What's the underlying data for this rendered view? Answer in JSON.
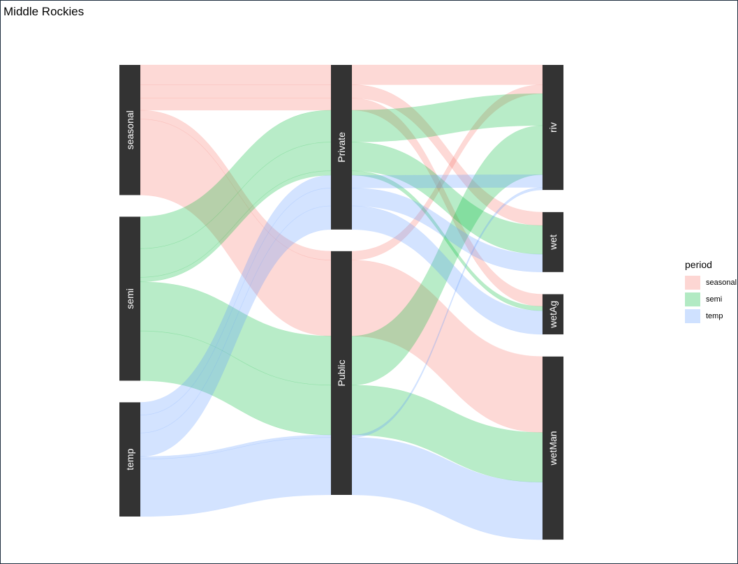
{
  "chart_data": {
    "type": "sankey",
    "title": "Middle Rockies",
    "axes": [
      "period",
      "ownership",
      "wetland_type"
    ],
    "nodes": {
      "period": [
        "seasonal",
        "semi",
        "temp"
      ],
      "ownership": [
        "Private",
        "Public"
      ],
      "wetland_type": [
        "riv",
        "wet",
        "wetAg",
        "wetMan"
      ]
    },
    "flows": [
      {
        "period": "seasonal",
        "ownership": "Private",
        "wetland_type": "riv",
        "value": 31
      },
      {
        "period": "seasonal",
        "ownership": "Private",
        "wetland_type": "wet",
        "value": 21
      },
      {
        "period": "seasonal",
        "ownership": "Private",
        "wetland_type": "wetAg",
        "value": 19
      },
      {
        "period": "seasonal",
        "ownership": "Public",
        "wetland_type": "riv",
        "value": 14
      },
      {
        "period": "seasonal",
        "ownership": "Public",
        "wetland_type": "wetMan",
        "value": 119
      },
      {
        "period": "semi",
        "ownership": "Private",
        "wetland_type": "riv",
        "value": 50
      },
      {
        "period": "semi",
        "ownership": "Private",
        "wetland_type": "wet",
        "value": 45
      },
      {
        "period": "semi",
        "ownership": "Private",
        "wetland_type": "wetAg",
        "value": 7
      },
      {
        "period": "semi",
        "ownership": "Public",
        "wetland_type": "riv",
        "value": 77
      },
      {
        "period": "semi",
        "ownership": "Public",
        "wetland_type": "wetMan",
        "value": 78
      },
      {
        "period": "temp",
        "ownership": "Private",
        "wetland_type": "riv",
        "value": 20
      },
      {
        "period": "temp",
        "ownership": "Private",
        "wetland_type": "wet",
        "value": 28
      },
      {
        "period": "temp",
        "ownership": "Private",
        "wetland_type": "wetAg",
        "value": 37
      },
      {
        "period": "temp",
        "ownership": "Public",
        "wetland_type": "riv",
        "value": 4
      },
      {
        "period": "temp",
        "ownership": "Public",
        "wetland_type": "wetMan",
        "value": 90
      }
    ],
    "fill_by": "period",
    "legend": {
      "title": "period",
      "placement": "right",
      "entries": [
        {
          "label": "seasonal",
          "color": "#F8766D"
        },
        {
          "label": "semi",
          "color": "#00BA38"
        },
        {
          "label": "temp",
          "color": "#619CFF"
        }
      ]
    },
    "node_color": "#333333",
    "flow_opacity": 0.28,
    "grid": false
  }
}
